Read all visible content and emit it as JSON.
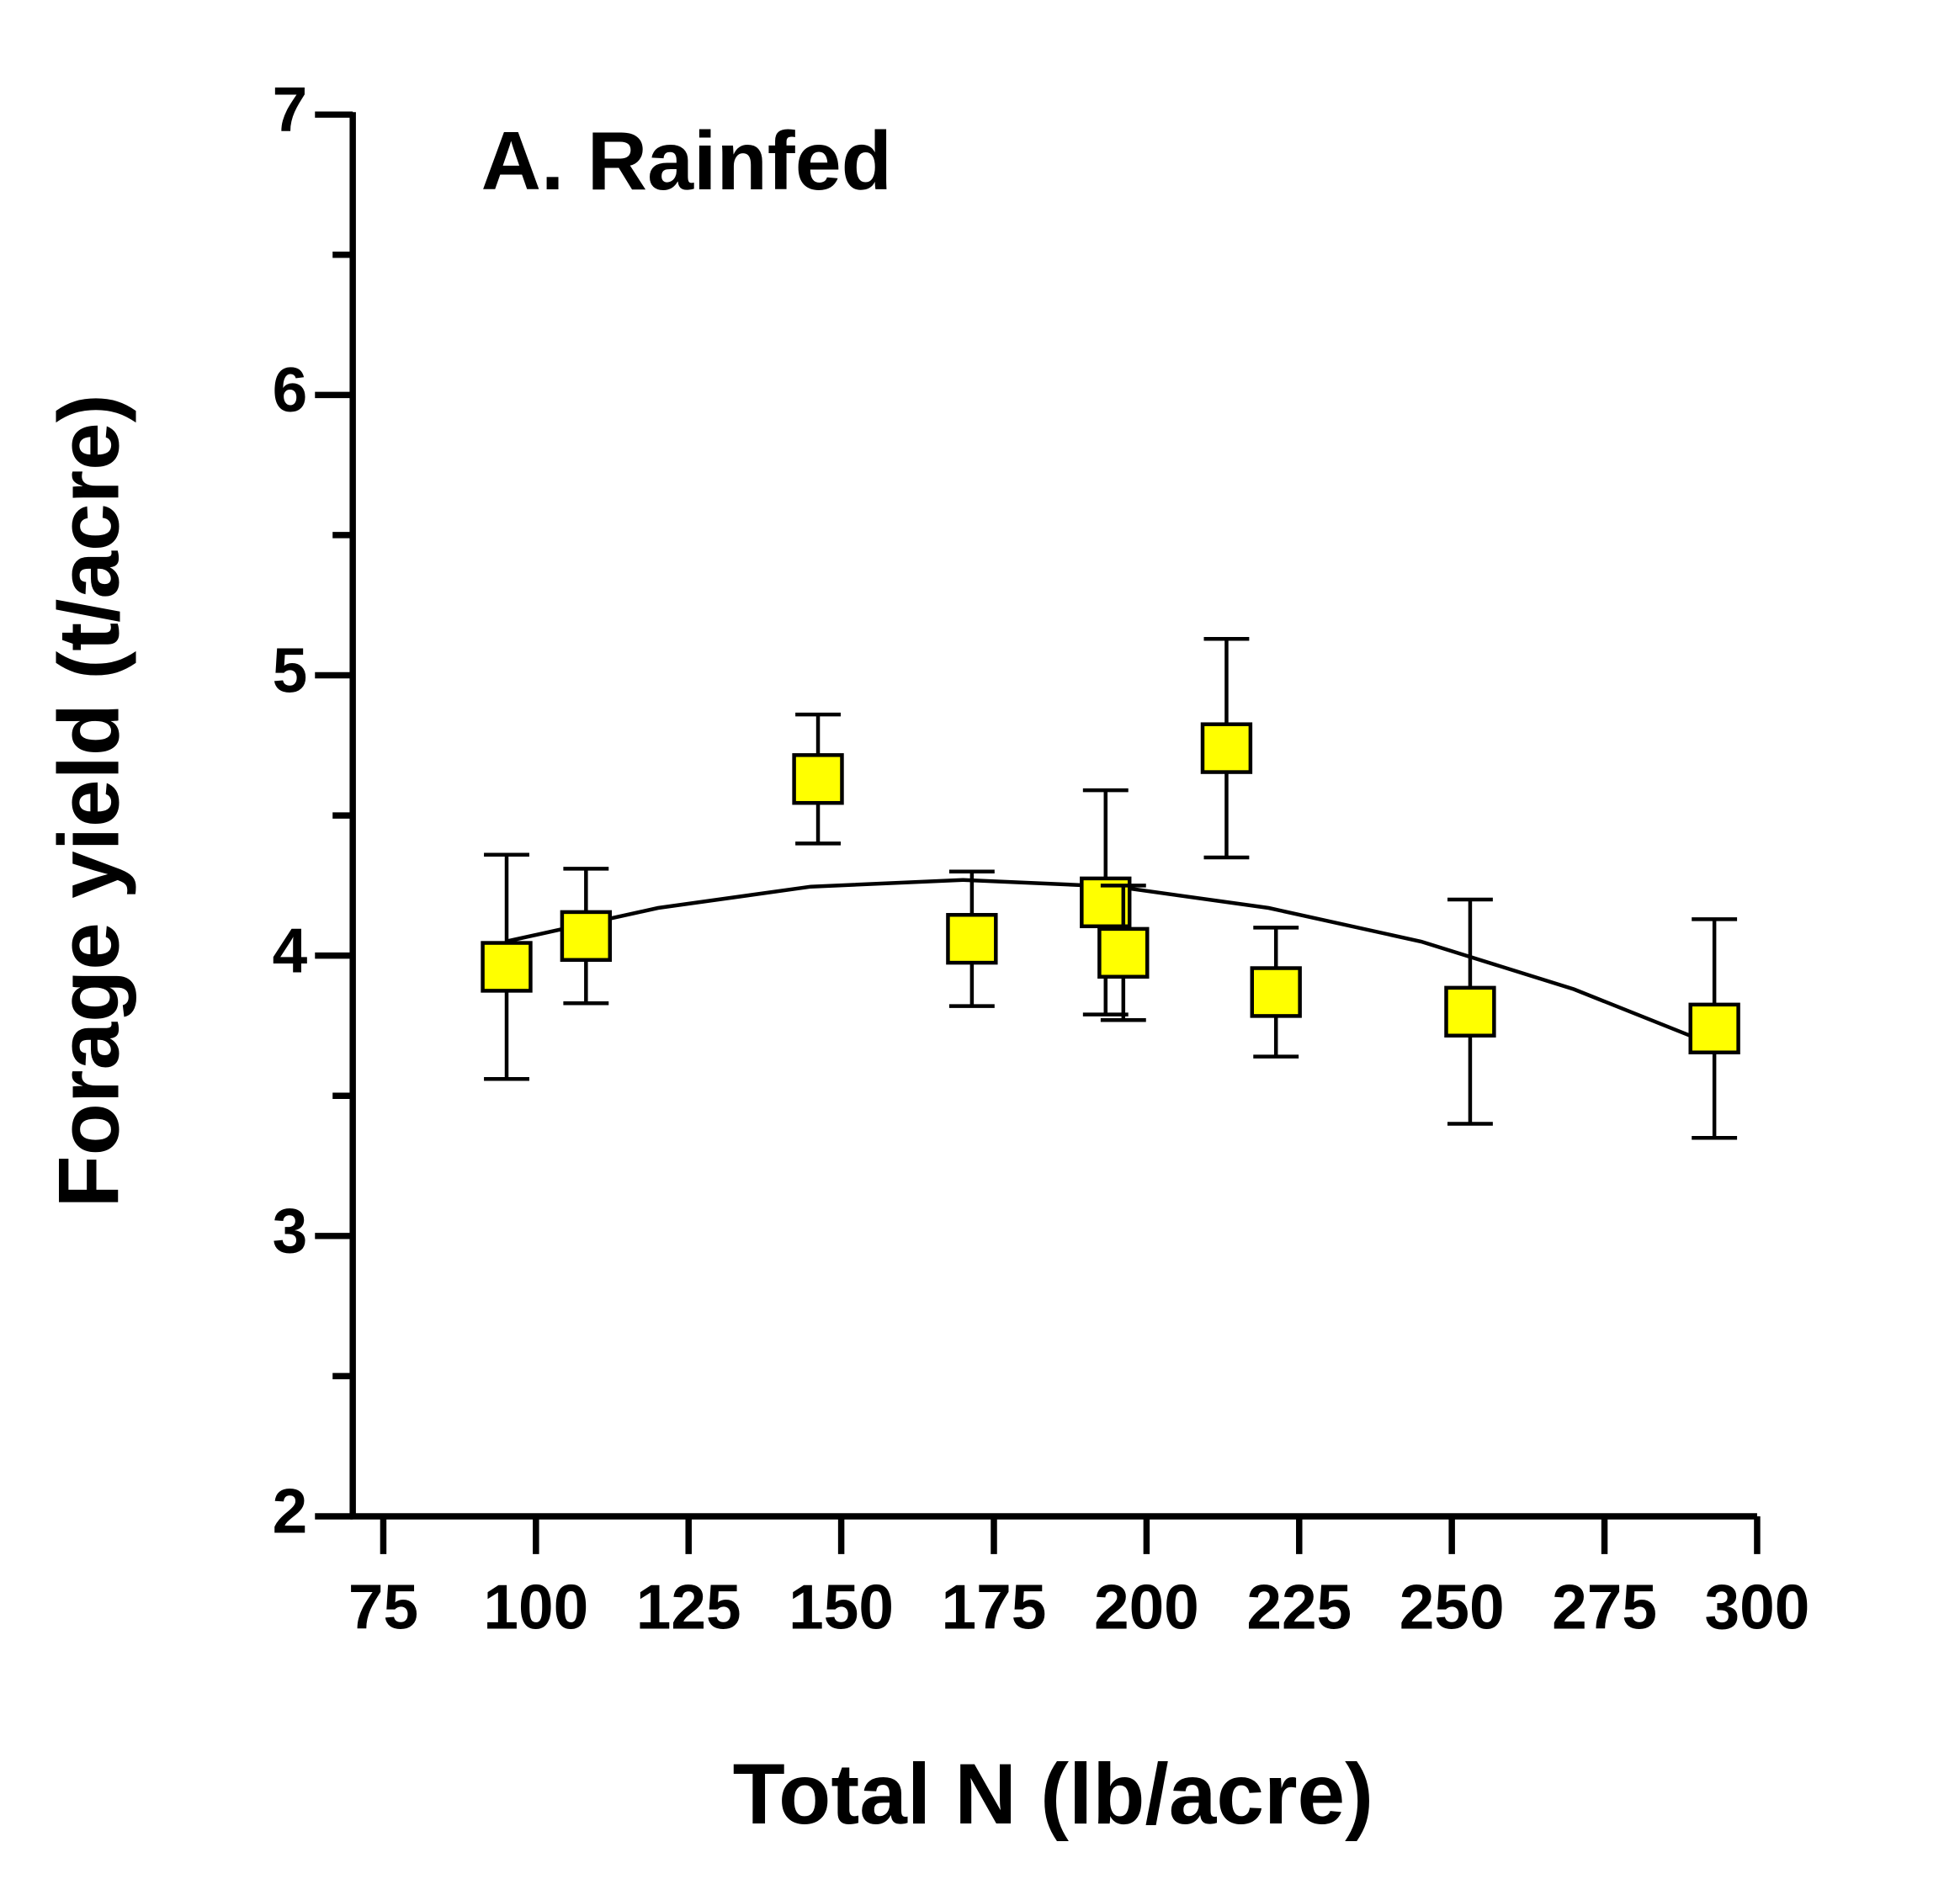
{
  "chart_data": {
    "type": "scatter",
    "title": "A. Rainfed",
    "xlabel": "Total N (lb/acre)",
    "ylabel": "Forage yield (t/acre)",
    "xlim": [
      70,
      300
    ],
    "xticks": [
      75,
      100,
      125,
      150,
      175,
      200,
      225,
      250,
      275,
      300
    ],
    "ylim": [
      2,
      7
    ],
    "yticks": [
      2,
      3,
      4,
      5,
      6,
      7
    ],
    "yminorticks": [
      2.5,
      3.5,
      4.5,
      5.5,
      6.5
    ],
    "series": [
      {
        "color": "#ffff00",
        "x": [
          95.2,
          108.2,
          146.2,
          171.4,
          193.3,
          196.2,
          213.1,
          221.2,
          253.0,
          293.0
        ],
        "values": [
          3.96,
          4.07,
          4.63,
          4.06,
          4.19,
          4.01,
          4.74,
          3.87,
          3.8,
          3.74
        ],
        "errors": [
          0.4,
          0.24,
          0.23,
          0.24,
          0.4,
          0.24,
          0.39,
          0.23,
          0.4,
          0.39
        ]
      }
    ],
    "fit": {
      "color": "#000000",
      "x": [
        95,
        120,
        145,
        170,
        195,
        220,
        245,
        270,
        293
      ],
      "values": [
        4.05,
        4.17,
        4.246,
        4.27,
        4.246,
        4.17,
        4.05,
        3.88,
        3.68
      ]
    }
  }
}
